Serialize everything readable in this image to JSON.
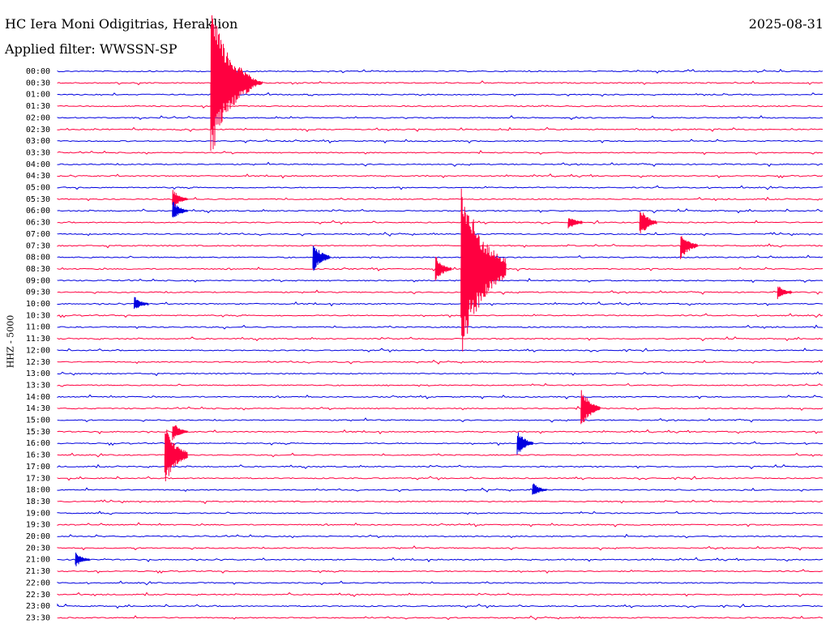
{
  "header": {
    "station": "HC Iera Moni Odigitrias, Heraklion",
    "date": "2025-08-31",
    "filter": "Applied filter: WWSSN-SP"
  },
  "axis": {
    "ylabel": "HHZ - 5000"
  },
  "colors": {
    "even": "#0000e0",
    "odd": "#ff0040"
  },
  "chart_data": {
    "type": "line",
    "title": "HC Iera Moni Odigitrias, Heraklion",
    "ylabel": "HHZ - 5000",
    "row_labels": [
      "00:00",
      "00:30",
      "01:00",
      "01:30",
      "02:00",
      "02:30",
      "03:00",
      "03:30",
      "04:00",
      "04:30",
      "05:00",
      "05:30",
      "06:00",
      "06:30",
      "07:00",
      "07:30",
      "08:00",
      "08:30",
      "09:00",
      "09:30",
      "10:00",
      "10:30",
      "11:00",
      "11:30",
      "12:00",
      "12:30",
      "13:00",
      "13:30",
      "14:00",
      "14:30",
      "15:00",
      "15:30",
      "16:00",
      "16:30",
      "17:00",
      "17:30",
      "18:00",
      "18:30",
      "19:00",
      "19:30",
      "20:00",
      "20:30",
      "21:00",
      "21:30",
      "22:00",
      "22:30",
      "23:00",
      "23:30"
    ],
    "events": [
      {
        "row": "00:30",
        "minute": 6.0,
        "amplitude": 30,
        "note": "large"
      },
      {
        "row": "00:30",
        "minute": 7.4,
        "amplitude": 5
      },
      {
        "row": "05:30",
        "minute": 4.5,
        "amplitude": 4
      },
      {
        "row": "06:00",
        "minute": 4.5,
        "amplitude": 4
      },
      {
        "row": "06:30",
        "minute": 20.0,
        "amplitude": 3
      },
      {
        "row": "06:30",
        "minute": 22.8,
        "amplitude": 6
      },
      {
        "row": "07:30",
        "minute": 24.4,
        "amplitude": 6
      },
      {
        "row": "08:00",
        "minute": 10.0,
        "amplitude": 6
      },
      {
        "row": "08:30",
        "minute": 14.8,
        "amplitude": 5
      },
      {
        "row": "08:30",
        "minute": 15.8,
        "amplitude": 35,
        "note": "large"
      },
      {
        "row": "09:30",
        "minute": 28.2,
        "amplitude": 3
      },
      {
        "row": "10:00",
        "minute": 3.0,
        "amplitude": 3
      },
      {
        "row": "14:30",
        "minute": 20.5,
        "amplitude": 8
      },
      {
        "row": "15:30",
        "minute": 4.5,
        "amplitude": 4
      },
      {
        "row": "16:00",
        "minute": 18.0,
        "amplitude": 5
      },
      {
        "row": "16:30",
        "minute": 4.2,
        "amplitude": 12,
        "note": "large"
      },
      {
        "row": "18:00",
        "minute": 18.6,
        "amplitude": 3
      },
      {
        "row": "21:00",
        "minute": 0.7,
        "amplitude": 3
      }
    ]
  }
}
